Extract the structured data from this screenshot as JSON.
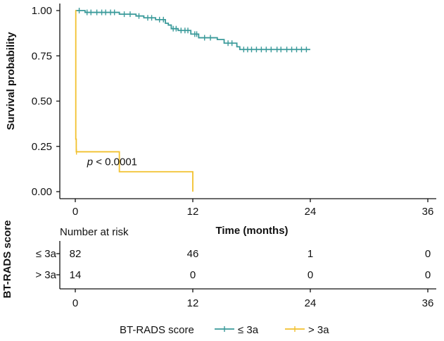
{
  "chart_data": {
    "type": "line",
    "subtype": "kaplan-meier",
    "ylabel": "Survival probability",
    "xlabel": "Time (months)",
    "xlim": [
      0,
      36
    ],
    "ylim": [
      0,
      1
    ],
    "x_ticks": [
      0,
      12,
      24,
      36
    ],
    "x_tick_labels": [
      "0",
      "12",
      "24",
      "36"
    ],
    "y_ticks": [
      0,
      0.25,
      0.5,
      0.75,
      1
    ],
    "y_tick_labels": [
      "0.00",
      "0.25",
      "0.50",
      "0.75",
      "1.00"
    ],
    "annotation": {
      "prefix": "p",
      "text": " < 0.0001",
      "x": 1.2,
      "y": 0.145
    },
    "series": [
      {
        "name": "≤ 3a",
        "color": "#3a9a9a",
        "steps": [
          [
            0,
            1.0
          ],
          [
            1.0,
            0.99
          ],
          [
            4.5,
            0.98
          ],
          [
            6.2,
            0.97
          ],
          [
            7.0,
            0.96
          ],
          [
            8.2,
            0.95
          ],
          [
            9.2,
            0.93
          ],
          [
            9.5,
            0.92
          ],
          [
            9.8,
            0.9
          ],
          [
            10.5,
            0.89
          ],
          [
            11.8,
            0.87
          ],
          [
            12.6,
            0.85
          ],
          [
            14.5,
            0.84
          ],
          [
            15.2,
            0.82
          ],
          [
            16.5,
            0.8
          ],
          [
            16.8,
            0.785
          ],
          [
            24.0,
            0.785
          ]
        ],
        "censors": [
          [
            0.4,
            1.0
          ],
          [
            1.2,
            0.99
          ],
          [
            1.6,
            0.99
          ],
          [
            2.2,
            0.99
          ],
          [
            2.7,
            0.99
          ],
          [
            3.1,
            0.99
          ],
          [
            3.6,
            0.99
          ],
          [
            4.0,
            0.99
          ],
          [
            5.0,
            0.98
          ],
          [
            5.6,
            0.98
          ],
          [
            6.5,
            0.97
          ],
          [
            7.4,
            0.96
          ],
          [
            7.8,
            0.96
          ],
          [
            8.6,
            0.95
          ],
          [
            9.0,
            0.95
          ],
          [
            10.0,
            0.9
          ],
          [
            10.3,
            0.9
          ],
          [
            10.8,
            0.89
          ],
          [
            11.2,
            0.89
          ],
          [
            11.5,
            0.89
          ],
          [
            12.2,
            0.87
          ],
          [
            12.4,
            0.87
          ],
          [
            13.2,
            0.85
          ],
          [
            13.8,
            0.85
          ],
          [
            15.6,
            0.82
          ],
          [
            16.0,
            0.82
          ],
          [
            17.2,
            0.785
          ],
          [
            17.6,
            0.785
          ],
          [
            18.0,
            0.785
          ],
          [
            18.5,
            0.785
          ],
          [
            19.0,
            0.785
          ],
          [
            19.5,
            0.785
          ],
          [
            20.0,
            0.785
          ],
          [
            20.6,
            0.785
          ],
          [
            21.0,
            0.785
          ],
          [
            21.6,
            0.785
          ],
          [
            22.1,
            0.785
          ],
          [
            22.6,
            0.785
          ],
          [
            23.1,
            0.785
          ],
          [
            23.6,
            0.785
          ]
        ]
      },
      {
        "name": "> 3a",
        "color": "#f2c12e",
        "steps": [
          [
            0,
            1.0
          ],
          [
            0.05,
            0.29
          ],
          [
            0.1,
            0.22
          ],
          [
            4.5,
            0.11
          ],
          [
            12.0,
            0.11
          ],
          [
            12.0,
            0.0
          ]
        ],
        "censors": [
          [
            0.12,
            0.22
          ]
        ]
      }
    ],
    "risk_table": {
      "title": "Number at risk",
      "side_label": "BT-RADS score",
      "x_tick_labels": [
        "0",
        "12",
        "24",
        "36"
      ],
      "rows": [
        {
          "label": "≤ 3a",
          "values": [
            "82",
            "46",
            "1",
            "0"
          ]
        },
        {
          "label": "> 3a",
          "values": [
            "14",
            "0",
            "0",
            "0"
          ]
        }
      ]
    },
    "legend": {
      "title": "BT-RADS score",
      "position": "bottom",
      "entries": [
        "≤ 3a",
        "> 3a"
      ]
    }
  }
}
